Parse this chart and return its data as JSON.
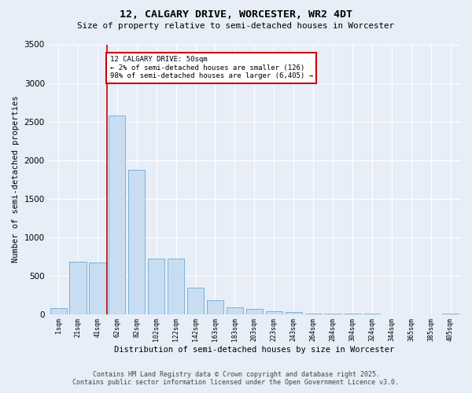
{
  "title1": "12, CALGARY DRIVE, WORCESTER, WR2 4DT",
  "title2": "Size of property relative to semi-detached houses in Worcester",
  "xlabel": "Distribution of semi-detached houses by size in Worcester",
  "ylabel": "Number of semi-detached properties",
  "bar_labels": [
    "1sqm",
    "21sqm",
    "41sqm",
    "62sqm",
    "82sqm",
    "102sqm",
    "122sqm",
    "142sqm",
    "163sqm",
    "183sqm",
    "203sqm",
    "223sqm",
    "243sqm",
    "264sqm",
    "284sqm",
    "304sqm",
    "324sqm",
    "344sqm",
    "365sqm",
    "385sqm",
    "405sqm"
  ],
  "bar_values": [
    75,
    680,
    670,
    2580,
    1870,
    720,
    720,
    340,
    180,
    90,
    65,
    40,
    25,
    10,
    5,
    2,
    1,
    0,
    0,
    0,
    5
  ],
  "bar_color": "#c9ddf2",
  "bar_edge_color": "#6aaad4",
  "ylim": [
    0,
    3500
  ],
  "yticks": [
    0,
    500,
    1000,
    1500,
    2000,
    2500,
    3000,
    3500
  ],
  "red_line_index": 2,
  "annotation_text": "12 CALGARY DRIVE: 50sqm\n← 2% of semi-detached houses are smaller (126)\n98% of semi-detached houses are larger (6,405) →",
  "annotation_box_color": "#ffffff",
  "annotation_box_edge_color": "#cc0000",
  "red_line_color": "#cc0000",
  "background_color": "#e8eef8",
  "grid_color": "#ffffff",
  "footer1": "Contains HM Land Registry data © Crown copyright and database right 2025.",
  "footer2": "Contains public sector information licensed under the Open Government Licence v3.0."
}
